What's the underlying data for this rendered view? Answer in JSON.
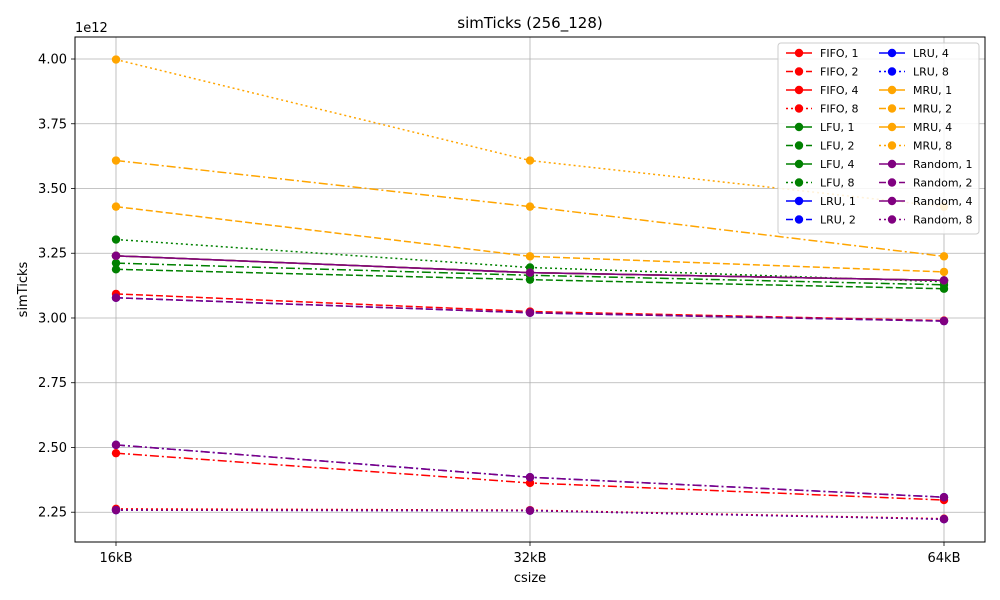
{
  "chart_data": {
    "type": "line",
    "title": "simTicks (256_128)",
    "xlabel": "csize",
    "ylabel": "simTicks",
    "y_offset_label": "1e12",
    "categories": [
      "16kB",
      "32kB",
      "64kB"
    ],
    "ylim": [
      2.135,
      4.085
    ],
    "yticks": [
      "2.25",
      "2.50",
      "2.75",
      "3.00",
      "3.25",
      "3.50",
      "3.75",
      "4.00"
    ],
    "ytick_values": [
      2.25,
      2.5,
      2.75,
      3.0,
      3.25,
      3.5,
      3.75,
      4.0
    ],
    "grid": true,
    "legend_position": "top-right",
    "legend_columns": 2,
    "series": [
      {
        "name": "FIFO, 1",
        "color": "#ff0000",
        "dash": "solid",
        "values": [
          3.24,
          3.175,
          3.145
        ]
      },
      {
        "name": "FIFO, 2",
        "color": "#ff0000",
        "dash": "dashed",
        "values": [
          3.093,
          3.025,
          2.99
        ]
      },
      {
        "name": "FIFO, 4",
        "color": "#ff0000",
        "dash": "dashdot",
        "values": [
          2.478,
          2.363,
          2.297
        ]
      },
      {
        "name": "FIFO, 8",
        "color": "#ff0000",
        "dash": "dotted",
        "values": [
          2.263,
          2.258,
          2.225
        ]
      },
      {
        "name": "LFU, 1",
        "color": "#008000",
        "dash": "solid",
        "values": [
          3.24,
          3.175,
          3.145
        ]
      },
      {
        "name": "LFU, 2",
        "color": "#008000",
        "dash": "dashed",
        "values": [
          3.188,
          3.148,
          3.113
        ]
      },
      {
        "name": "LFU, 4",
        "color": "#008000",
        "dash": "dashdot",
        "values": [
          3.212,
          3.165,
          3.128
        ]
      },
      {
        "name": "LFU, 8",
        "color": "#008000",
        "dash": "dotted",
        "values": [
          3.303,
          3.195,
          3.14
        ]
      },
      {
        "name": "LRU, 1",
        "color": "#0000ff",
        "dash": "solid",
        "values": [
          3.24,
          3.175,
          3.145
        ]
      },
      {
        "name": "LRU, 2",
        "color": "#0000ff",
        "dash": "dashed",
        "values": [
          3.078,
          3.02,
          2.988
        ]
      },
      {
        "name": "LRU, 4",
        "color": "#0000ff",
        "dash": "dashdot",
        "values": [
          2.51,
          2.385,
          2.308
        ]
      },
      {
        "name": "LRU, 8",
        "color": "#0000ff",
        "dash": "dotted",
        "values": [
          2.258,
          2.256,
          2.223
        ]
      },
      {
        "name": "MRU, 1",
        "color": "#ffa500",
        "dash": "solid",
        "values": [
          3.24,
          3.175,
          3.145
        ]
      },
      {
        "name": "MRU, 2",
        "color": "#ffa500",
        "dash": "dashed",
        "values": [
          3.43,
          3.238,
          3.178
        ]
      },
      {
        "name": "MRU, 4",
        "color": "#ffa500",
        "dash": "dashdot",
        "values": [
          3.608,
          3.43,
          3.238
        ]
      },
      {
        "name": "MRU, 8",
        "color": "#ffa500",
        "dash": "dotted",
        "values": [
          3.998,
          3.608,
          3.43
        ]
      },
      {
        "name": "Random, 1",
        "color": "#800080",
        "dash": "solid",
        "values": [
          3.24,
          3.175,
          3.145
        ]
      },
      {
        "name": "Random, 2",
        "color": "#800080",
        "dash": "dashed",
        "values": [
          3.078,
          3.02,
          2.988
        ]
      },
      {
        "name": "Random, 4",
        "color": "#800080",
        "dash": "dashdot",
        "values": [
          2.51,
          2.385,
          2.308
        ]
      },
      {
        "name": "Random, 8",
        "color": "#800080",
        "dash": "dotted",
        "values": [
          2.258,
          2.256,
          2.223
        ]
      }
    ]
  }
}
